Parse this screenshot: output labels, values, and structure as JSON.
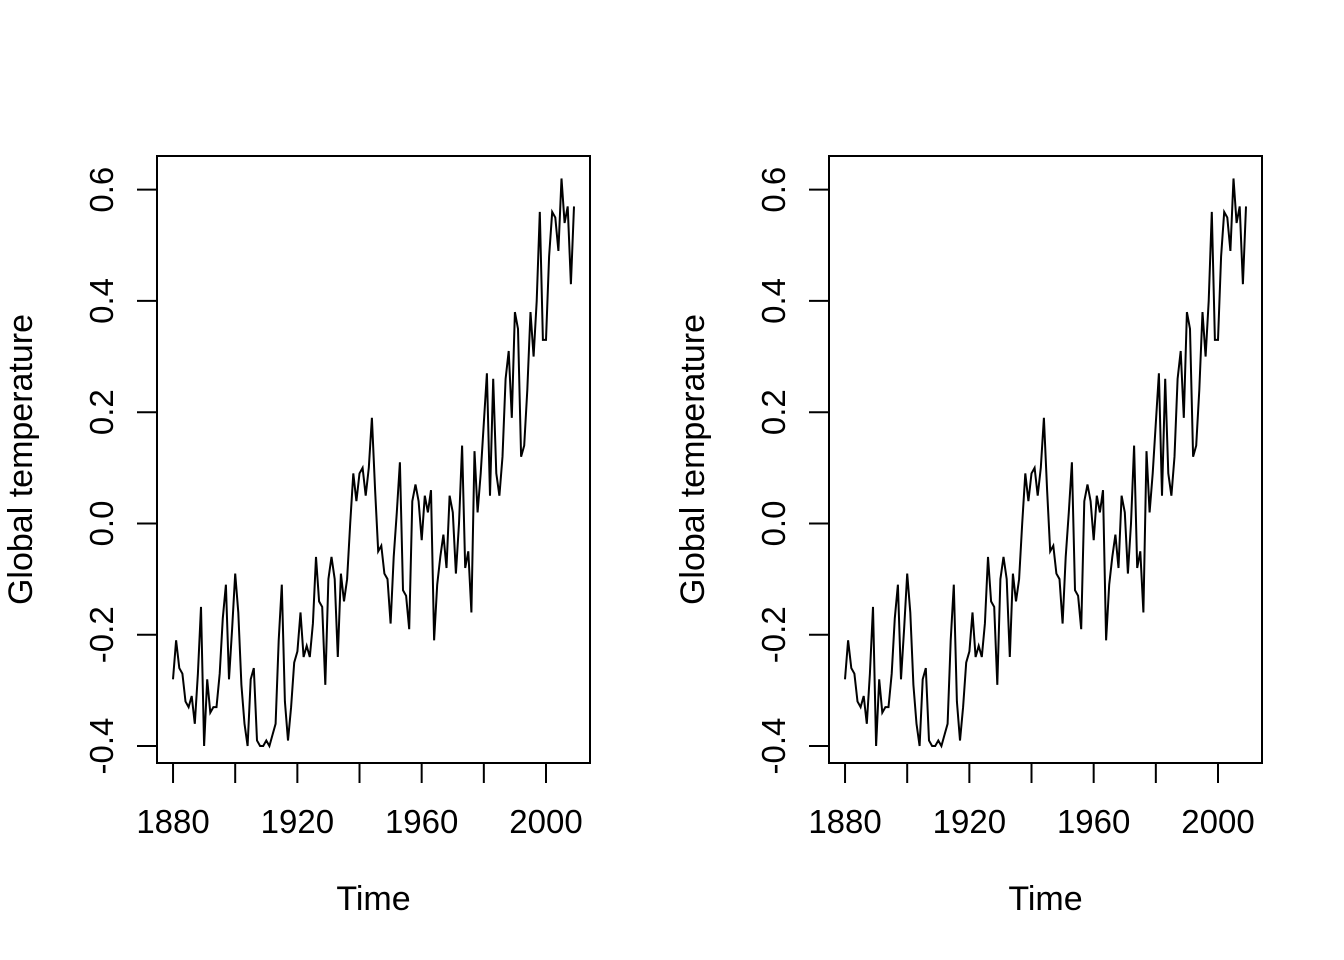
{
  "figure": {
    "background": "#ffffff",
    "description": "Two-panel base-R plot of annual global temperature deviations with fitted trends"
  },
  "chart_data": {
    "type": "line",
    "title": "",
    "color": "#000000",
    "grid": false,
    "legend": false,
    "xlim": [
      1874.84,
      2014.16
    ],
    "ylim": [
      -0.4305,
      0.6605
    ],
    "xticks": {
      "positions": [
        1880,
        1900,
        1920,
        1940,
        1960,
        1980,
        2000
      ],
      "labels": [
        "1880",
        "",
        "1920",
        "",
        "1960",
        "",
        "2000"
      ]
    },
    "yticks": {
      "positions": [
        0.6,
        0.4,
        0.2,
        0.0,
        -0.2,
        -0.4
      ],
      "labels": [
        "0.6",
        "0.4",
        "0.2",
        "0.0",
        "-0.2",
        "-0.4"
      ]
    },
    "series": [
      {
        "name": "global-temperature-anomaly",
        "x_start": 1880,
        "x_step": 1,
        "x_end": 2009,
        "values": [
          -0.28,
          -0.21,
          -0.26,
          -0.27,
          -0.32,
          -0.33,
          -0.31,
          -0.36,
          -0.27,
          -0.15,
          -0.4,
          -0.28,
          -0.34,
          -0.33,
          -0.33,
          -0.27,
          -0.17,
          -0.11,
          -0.28,
          -0.19,
          -0.09,
          -0.16,
          -0.29,
          -0.36,
          -0.4,
          -0.28,
          -0.26,
          -0.39,
          -0.4,
          -0.4,
          -0.39,
          -0.4,
          -0.38,
          -0.36,
          -0.21,
          -0.11,
          -0.32,
          -0.39,
          -0.33,
          -0.25,
          -0.23,
          -0.16,
          -0.24,
          -0.22,
          -0.24,
          -0.18,
          -0.06,
          -0.14,
          -0.15,
          -0.29,
          -0.1,
          -0.06,
          -0.1,
          -0.24,
          -0.09,
          -0.14,
          -0.1,
          0.0,
          0.09,
          0.04,
          0.09,
          0.1,
          0.05,
          0.1,
          0.19,
          0.06,
          -0.05,
          -0.04,
          -0.09,
          -0.1,
          -0.18,
          -0.06,
          0.02,
          0.11,
          -0.12,
          -0.13,
          -0.19,
          0.04,
          0.07,
          0.04,
          -0.03,
          0.05,
          0.02,
          0.06,
          -0.21,
          -0.11,
          -0.06,
          -0.02,
          -0.08,
          0.05,
          0.02,
          -0.09,
          0.0,
          0.14,
          -0.08,
          -0.05,
          -0.16,
          0.13,
          0.02,
          0.09,
          0.18,
          0.27,
          0.05,
          0.26,
          0.09,
          0.05,
          0.12,
          0.26,
          0.31,
          0.19,
          0.38,
          0.35,
          0.12,
          0.14,
          0.24,
          0.38,
          0.3,
          0.4,
          0.56,
          0.33,
          0.33,
          0.48,
          0.56,
          0.55,
          0.49,
          0.62,
          0.54,
          0.57,
          0.43,
          0.57
        ]
      }
    ],
    "panels": [
      {
        "xlabel": "Time",
        "ylabel": "Global temperature",
        "fit": "linear",
        "fit_span": "full_axis"
      },
      {
        "xlabel": "Time",
        "ylabel": "Global temperature",
        "fit": "quadratic",
        "fit_span": "data_range"
      }
    ]
  }
}
